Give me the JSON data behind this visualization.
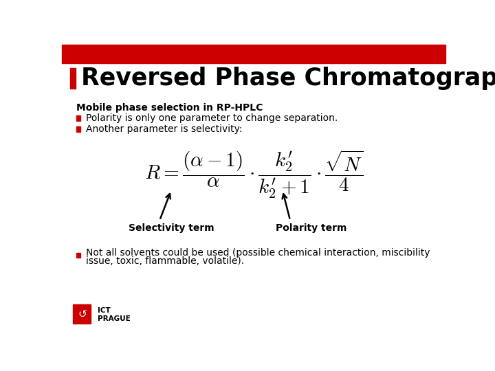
{
  "title": "Reversed Phase Chromatography",
  "title_marker_color": "#CC0000",
  "background_color": "#FFFFFF",
  "subtitle": "Mobile phase selection in RP-HPLC",
  "bullet_color": "#CC0000",
  "bullet1": "Polarity is only one parameter to change separation.",
  "bullet2": "Another parameter is selectivity:",
  "bullet3_line1": "Not all solvents could be used (possible chemical interaction, miscibility",
  "bullet3_line2": "issue, toxic, flammable, volatile).",
  "selectivity_label": "Selectivity term",
  "polarity_label": "Polarity term",
  "top_bar_color": "#CC0000"
}
